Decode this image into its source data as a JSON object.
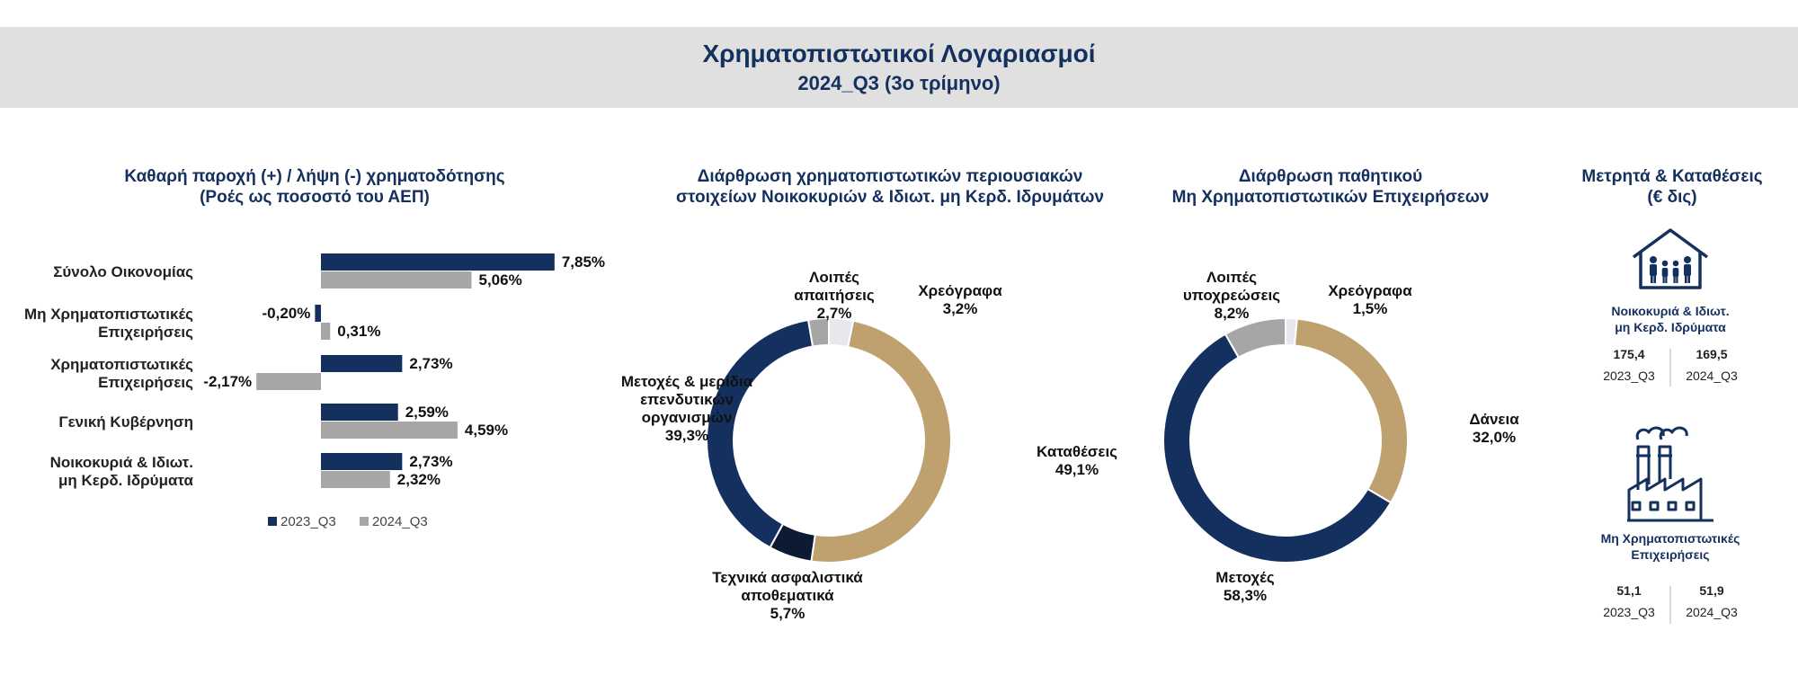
{
  "header": {
    "title": "Χρηματοπιστωτικοί Λογαριασμοί",
    "subtitle": "2024_Q3 (3ο τρίμηνο)"
  },
  "colors": {
    "navy": "#14305e",
    "gray": "#a6a6a6",
    "tan": "#bfa170",
    "darkest": "#0d1a33",
    "lightgray": "#e6e8ee"
  },
  "icons": [
    "house-family-icon",
    "factory-icon"
  ],
  "panels": {
    "bar_title": [
      "Καθαρή παροχή (+) / λήψη (-) χρηματοδότησης",
      "(Ροές ως ποσοστό του ΑΕΠ)"
    ],
    "assets_title": [
      "Διάρθρωση χρηματοπιστωτικών περιουσιακών",
      "στοιχείων Νοικοκυριών & Ιδιωτ. μη Κερδ. Ιδρυμάτων"
    ],
    "liab_title": [
      "Διάρθρωση παθητικού",
      "Μη Χρηματοπιστωτικών Επιχειρήσεων"
    ],
    "cash_title": [
      "Μετρητά & Καταθέσεις",
      "(€ δις)"
    ]
  },
  "chart_data": [
    {
      "type": "bar",
      "orientation": "horizontal",
      "categories": [
        [
          "Σύνολο Οικονομίας"
        ],
        [
          "Μη Χρηματοπιστωτικές",
          "Επιχειρήσεις"
        ],
        [
          "Χρηματοπιστωτικές",
          "Επιχειρήσεις"
        ],
        [
          "Γενική Κυβέρνηση"
        ],
        [
          "Νοικοκυριά & Ιδιωτ.",
          "μη Κερδ. Ιδρύματα"
        ]
      ],
      "series": [
        {
          "name": "2023_Q3",
          "values": [
            7.85,
            -0.2,
            2.73,
            2.59,
            2.73
          ],
          "labels": [
            "7,85%",
            "-0,20%",
            "2,73%",
            "2,59%",
            "2,73%"
          ]
        },
        {
          "name": "2024_Q3",
          "values": [
            5.06,
            0.31,
            -2.17,
            4.59,
            2.32
          ],
          "labels": [
            "5,06%",
            "0,31%",
            "-2,17%",
            "4,59%",
            "2,32%"
          ]
        }
      ],
      "legend": "bottom"
    },
    {
      "type": "pie",
      "donut": true,
      "slices": [
        {
          "label": [
            "Χρεόγραφα"
          ],
          "value": 3.2,
          "pct": "3,2%",
          "color": "#e6e8ee"
        },
        {
          "label": [
            "Καταθέσεις"
          ],
          "value": 49.1,
          "pct": "49,1%",
          "color": "#bfa170"
        },
        {
          "label": [
            "Τεχνικά ασφαλιστικά",
            "αποθεματικά"
          ],
          "value": 5.7,
          "pct": "5,7%",
          "color": "#0d1a33"
        },
        {
          "label": [
            "Μετοχές & μερίδια",
            "επενδυτικών",
            "οργανισμών"
          ],
          "value": 39.3,
          "pct": "39,3%",
          "color": "#14305e"
        },
        {
          "label": [
            "Λοιπές",
            "απαιτήσεις"
          ],
          "value": 2.7,
          "pct": "2,7%",
          "color": "#a6a6a6"
        }
      ]
    },
    {
      "type": "pie",
      "donut": true,
      "slices": [
        {
          "label": [
            "Χρεόγραφα"
          ],
          "value": 1.5,
          "pct": "1,5%",
          "color": "#e6e8ee"
        },
        {
          "label": [
            "Δάνεια"
          ],
          "value": 32.0,
          "pct": "32,0%",
          "color": "#bfa170"
        },
        {
          "label": [
            "Μετοχές"
          ],
          "value": 58.3,
          "pct": "58,3%",
          "color": "#14305e"
        },
        {
          "label": [
            "Λοιπές",
            "υποχρεώσεις"
          ],
          "value": 8.2,
          "pct": "8,2%",
          "color": "#a6a6a6"
        }
      ]
    },
    {
      "type": "table",
      "rows": [
        {
          "label": [
            "Νοικοκυριά & Ιδιωτ.",
            "μη Κερδ. Ιδρύματα"
          ],
          "values": [
            "175,4",
            "169,5"
          ],
          "periods": [
            "2023_Q3",
            "2024_Q3"
          ],
          "icon": "house-family-icon"
        },
        {
          "label": [
            "Μη Χρηματοπιστωτικές",
            "Επιχειρήσεις"
          ],
          "values": [
            "51,1",
            "51,9"
          ],
          "periods": [
            "2023_Q3",
            "2024_Q3"
          ],
          "icon": "factory-icon"
        }
      ]
    }
  ]
}
